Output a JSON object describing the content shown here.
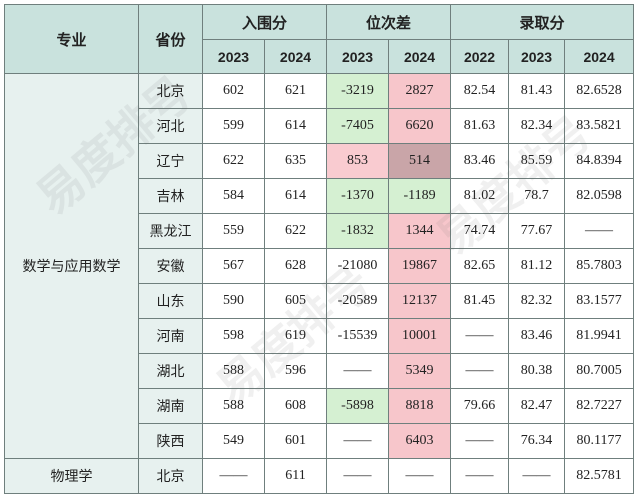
{
  "header": {
    "major": "专业",
    "province": "省份",
    "group_entry": "入围分",
    "group_rank": "位次差",
    "group_admit": "录取分",
    "years": [
      "2023",
      "2024",
      "2023",
      "2024",
      "2022",
      "2023",
      "2024"
    ]
  },
  "majors": {
    "math": "数学与应用数学",
    "physics": "物理学"
  },
  "rows": [
    {
      "province": "北京",
      "cells": [
        {
          "v": "602",
          "c": "v"
        },
        {
          "v": "621",
          "c": "v"
        },
        {
          "v": "-3219",
          "c": "g"
        },
        {
          "v": "2827",
          "c": "r"
        },
        {
          "v": "82.54",
          "c": "v"
        },
        {
          "v": "81.43",
          "c": "v"
        },
        {
          "v": "82.6528",
          "c": "v"
        }
      ]
    },
    {
      "province": "河北",
      "cells": [
        {
          "v": "599",
          "c": "v"
        },
        {
          "v": "614",
          "c": "v"
        },
        {
          "v": "-7405",
          "c": "g"
        },
        {
          "v": "6620",
          "c": "r"
        },
        {
          "v": "81.63",
          "c": "v"
        },
        {
          "v": "82.34",
          "c": "v"
        },
        {
          "v": "83.5821",
          "c": "v"
        }
      ]
    },
    {
      "province": "辽宁",
      "cells": [
        {
          "v": "622",
          "c": "v"
        },
        {
          "v": "635",
          "c": "v"
        },
        {
          "v": "853",
          "c": "pr"
        },
        {
          "v": "514",
          "c": "dr"
        },
        {
          "v": "83.46",
          "c": "v"
        },
        {
          "v": "85.59",
          "c": "v"
        },
        {
          "v": "84.8394",
          "c": "v"
        }
      ]
    },
    {
      "province": "吉林",
      "cells": [
        {
          "v": "584",
          "c": "v"
        },
        {
          "v": "614",
          "c": "v"
        },
        {
          "v": "-1370",
          "c": "g"
        },
        {
          "v": "-1189",
          "c": "g"
        },
        {
          "v": "81.02",
          "c": "v"
        },
        {
          "v": "78.7",
          "c": "v"
        },
        {
          "v": "82.0598",
          "c": "v"
        }
      ]
    },
    {
      "province": "黑龙江",
      "cells": [
        {
          "v": "559",
          "c": "v"
        },
        {
          "v": "622",
          "c": "v"
        },
        {
          "v": "-1832",
          "c": "g"
        },
        {
          "v": "1344",
          "c": "r"
        },
        {
          "v": "74.74",
          "c": "v"
        },
        {
          "v": "77.67",
          "c": "v"
        },
        {
          "v": "——",
          "c": "v"
        }
      ]
    },
    {
      "province": "安徽",
      "cells": [
        {
          "v": "567",
          "c": "v"
        },
        {
          "v": "628",
          "c": "v"
        },
        {
          "v": "-21080",
          "c": "v"
        },
        {
          "v": "19867",
          "c": "r"
        },
        {
          "v": "82.65",
          "c": "v"
        },
        {
          "v": "81.12",
          "c": "v"
        },
        {
          "v": "85.7803",
          "c": "v"
        }
      ]
    },
    {
      "province": "山东",
      "cells": [
        {
          "v": "590",
          "c": "v"
        },
        {
          "v": "605",
          "c": "v"
        },
        {
          "v": "-20589",
          "c": "v"
        },
        {
          "v": "12137",
          "c": "r"
        },
        {
          "v": "81.45",
          "c": "v"
        },
        {
          "v": "82.32",
          "c": "v"
        },
        {
          "v": "83.1577",
          "c": "v"
        }
      ]
    },
    {
      "province": "河南",
      "cells": [
        {
          "v": "598",
          "c": "v"
        },
        {
          "v": "619",
          "c": "v"
        },
        {
          "v": "-15539",
          "c": "v"
        },
        {
          "v": "10001",
          "c": "r"
        },
        {
          "v": "——",
          "c": "v"
        },
        {
          "v": "83.46",
          "c": "v"
        },
        {
          "v": "81.9941",
          "c": "v"
        }
      ]
    },
    {
      "province": "湖北",
      "cells": [
        {
          "v": "588",
          "c": "v"
        },
        {
          "v": "596",
          "c": "v"
        },
        {
          "v": "——",
          "c": "v"
        },
        {
          "v": "5349",
          "c": "r"
        },
        {
          "v": "——",
          "c": "v"
        },
        {
          "v": "80.38",
          "c": "v"
        },
        {
          "v": "80.7005",
          "c": "v"
        }
      ]
    },
    {
      "province": "湖南",
      "cells": [
        {
          "v": "588",
          "c": "v"
        },
        {
          "v": "608",
          "c": "v"
        },
        {
          "v": "-5898",
          "c": "g"
        },
        {
          "v": "8818",
          "c": "r"
        },
        {
          "v": "79.66",
          "c": "v"
        },
        {
          "v": "82.47",
          "c": "v"
        },
        {
          "v": "82.7227",
          "c": "v"
        }
      ]
    },
    {
      "province": "陕西",
      "cells": [
        {
          "v": "549",
          "c": "v"
        },
        {
          "v": "601",
          "c": "v"
        },
        {
          "v": "——",
          "c": "v"
        },
        {
          "v": "6403",
          "c": "r"
        },
        {
          "v": "——",
          "c": "v"
        },
        {
          "v": "76.34",
          "c": "v"
        },
        {
          "v": "80.1177",
          "c": "v"
        }
      ]
    }
  ],
  "physics_row": {
    "province": "北京",
    "cells": [
      {
        "v": "——",
        "c": "v"
      },
      {
        "v": "611",
        "c": "v"
      },
      {
        "v": "——",
        "c": "v"
      },
      {
        "v": "——",
        "c": "v"
      },
      {
        "v": "——",
        "c": "v"
      },
      {
        "v": "——",
        "c": "v"
      },
      {
        "v": "82.5781",
        "c": "v"
      }
    ]
  },
  "watermark": {
    "brand": "易度排号",
    "sub": "EDU RANK"
  }
}
